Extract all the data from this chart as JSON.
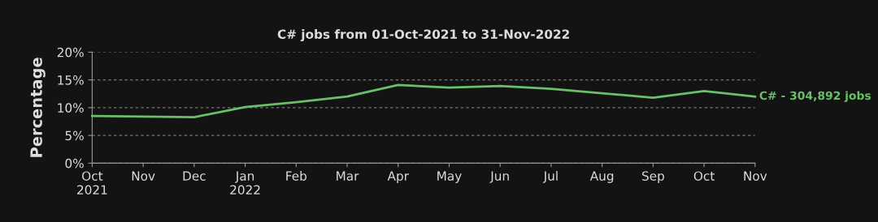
{
  "chart_data": {
    "type": "line",
    "title": "C# jobs from 01-Oct-2021 to 31-Nov-2022",
    "ylabel": "Percentage",
    "categories": [
      "Oct\n2021",
      "Nov",
      "Dec",
      "Jan\n2022",
      "Feb",
      "Mar",
      "Apr",
      "May",
      "Jun",
      "Jul",
      "Aug",
      "Sep",
      "Oct",
      "Nov"
    ],
    "series": [
      {
        "name": "C# - 304,892 jobs",
        "color": "#6abf69",
        "values": [
          8.5,
          8.4,
          8.3,
          10.1,
          11.0,
          12.0,
          14.1,
          13.6,
          13.9,
          13.4,
          12.6,
          11.8,
          13.0,
          12.0
        ]
      }
    ],
    "ylim": [
      0,
      20
    ],
    "yticks": [
      {
        "value": 0,
        "label": "0%"
      },
      {
        "value": 5,
        "label": "5%"
      },
      {
        "value": 10,
        "label": "10%"
      },
      {
        "value": 15,
        "label": "15%"
      },
      {
        "value": 20,
        "label": "20%"
      }
    ],
    "grid": "y",
    "line_style": "solid",
    "legend": false
  }
}
